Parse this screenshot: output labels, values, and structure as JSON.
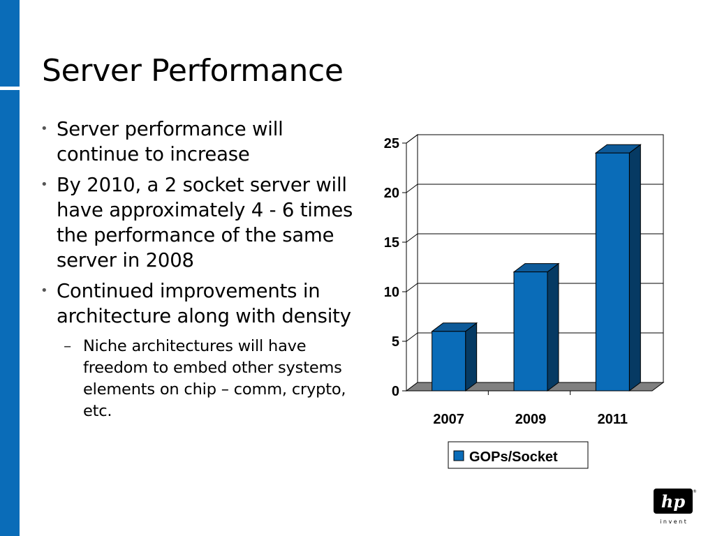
{
  "slide": {
    "title": "Server Performance",
    "bullets": [
      "Server performance will continue to increase",
      "By 2010, a 2 socket server will have approximately 4 - 6 times the performance of the same server in 2008",
      "Continued improvements in architecture along with density"
    ],
    "sub_bullets": [
      "Niche architectures will have freedom to embed other systems elements on chip – comm, crypto, etc."
    ],
    "bullet_marker": "•",
    "sub_bullet_marker": "–"
  },
  "logo": {
    "text": "hp",
    "tagline": "i n v e n t",
    "registered": "®",
    "icon": "hp-logo-icon"
  },
  "colors": {
    "accent_bar": "#0a6cb8",
    "bar_front": "#0a6cb8",
    "bar_side": "#063a63",
    "bar_top": "#0d5a99",
    "floor": "#808080"
  },
  "chart_data": {
    "type": "bar",
    "style": "3d",
    "categories": [
      "2007",
      "2009",
      "2011"
    ],
    "series": [
      {
        "name": "GOPs/Socket",
        "values": [
          6,
          12,
          24
        ]
      }
    ],
    "yticks": [
      0,
      5,
      10,
      15,
      20,
      25
    ],
    "ylim": [
      0,
      25
    ],
    "grid": true,
    "legend": "bottom",
    "title": "",
    "xlabel": "",
    "ylabel": ""
  }
}
